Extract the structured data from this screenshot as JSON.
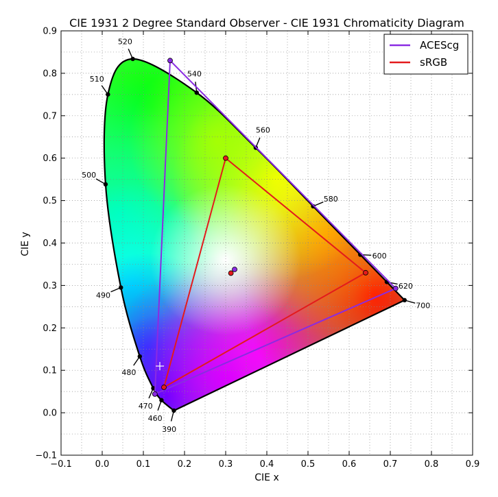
{
  "chart_data": {
    "type": "scatter",
    "title": "CIE 1931 2 Degree Standard Observer - CIE 1931 Chromaticity Diagram",
    "xlabel": "CIE x",
    "ylabel": "CIE y",
    "xlim": [
      -0.1,
      0.9
    ],
    "ylim": [
      -0.1,
      0.9
    ],
    "xticks": [
      "−0.1",
      "0.0",
      "0.1",
      "0.2",
      "0.3",
      "0.4",
      "0.5",
      "0.6",
      "0.7",
      "0.8",
      "0.9"
    ],
    "yticks": [
      "−0.1",
      "0.0",
      "0.1",
      "0.2",
      "0.3",
      "0.4",
      "0.5",
      "0.6",
      "0.7",
      "0.8",
      "0.9"
    ],
    "grid": true,
    "legend_position": "top-right",
    "spectral_locus": [
      {
        "nm": "390",
        "x": 0.1741,
        "y": 0.005
      },
      {
        "nm": "460",
        "x": 0.144,
        "y": 0.0297
      },
      {
        "nm": "470",
        "x": 0.1241,
        "y": 0.0578
      },
      {
        "nm": "480",
        "x": 0.0913,
        "y": 0.1327
      },
      {
        "nm": "490",
        "x": 0.0454,
        "y": 0.295
      },
      {
        "nm": "500",
        "x": 0.0082,
        "y": 0.5384
      },
      {
        "nm": "510",
        "x": 0.0139,
        "y": 0.7502
      },
      {
        "nm": "520",
        "x": 0.0743,
        "y": 0.8338
      },
      {
        "nm": "540",
        "x": 0.2296,
        "y": 0.7543
      },
      {
        "nm": "560",
        "x": 0.3731,
        "y": 0.6245
      },
      {
        "nm": "580",
        "x": 0.5125,
        "y": 0.4866
      },
      {
        "nm": "600",
        "x": 0.627,
        "y": 0.3725
      },
      {
        "nm": "620",
        "x": 0.6915,
        "y": 0.3083
      },
      {
        "nm": "700",
        "x": 0.7347,
        "y": 0.2653
      }
    ],
    "series": [
      {
        "name": "ACEScg",
        "color": "#8a2be2",
        "primaries": [
          {
            "x": 0.713,
            "y": 0.293
          },
          {
            "x": 0.165,
            "y": 0.83
          },
          {
            "x": 0.128,
            "y": 0.044
          }
        ],
        "whitepoint": {
          "x": 0.3217,
          "y": 0.3378
        }
      },
      {
        "name": "sRGB",
        "color": "#e31a1c",
        "primaries": [
          {
            "x": 0.64,
            "y": 0.33
          },
          {
            "x": 0.3,
            "y": 0.6
          },
          {
            "x": 0.15,
            "y": 0.06
          }
        ],
        "whitepoint": {
          "x": 0.3127,
          "y": 0.329
        }
      }
    ],
    "marker": {
      "x": 0.14,
      "y": 0.11
    }
  }
}
